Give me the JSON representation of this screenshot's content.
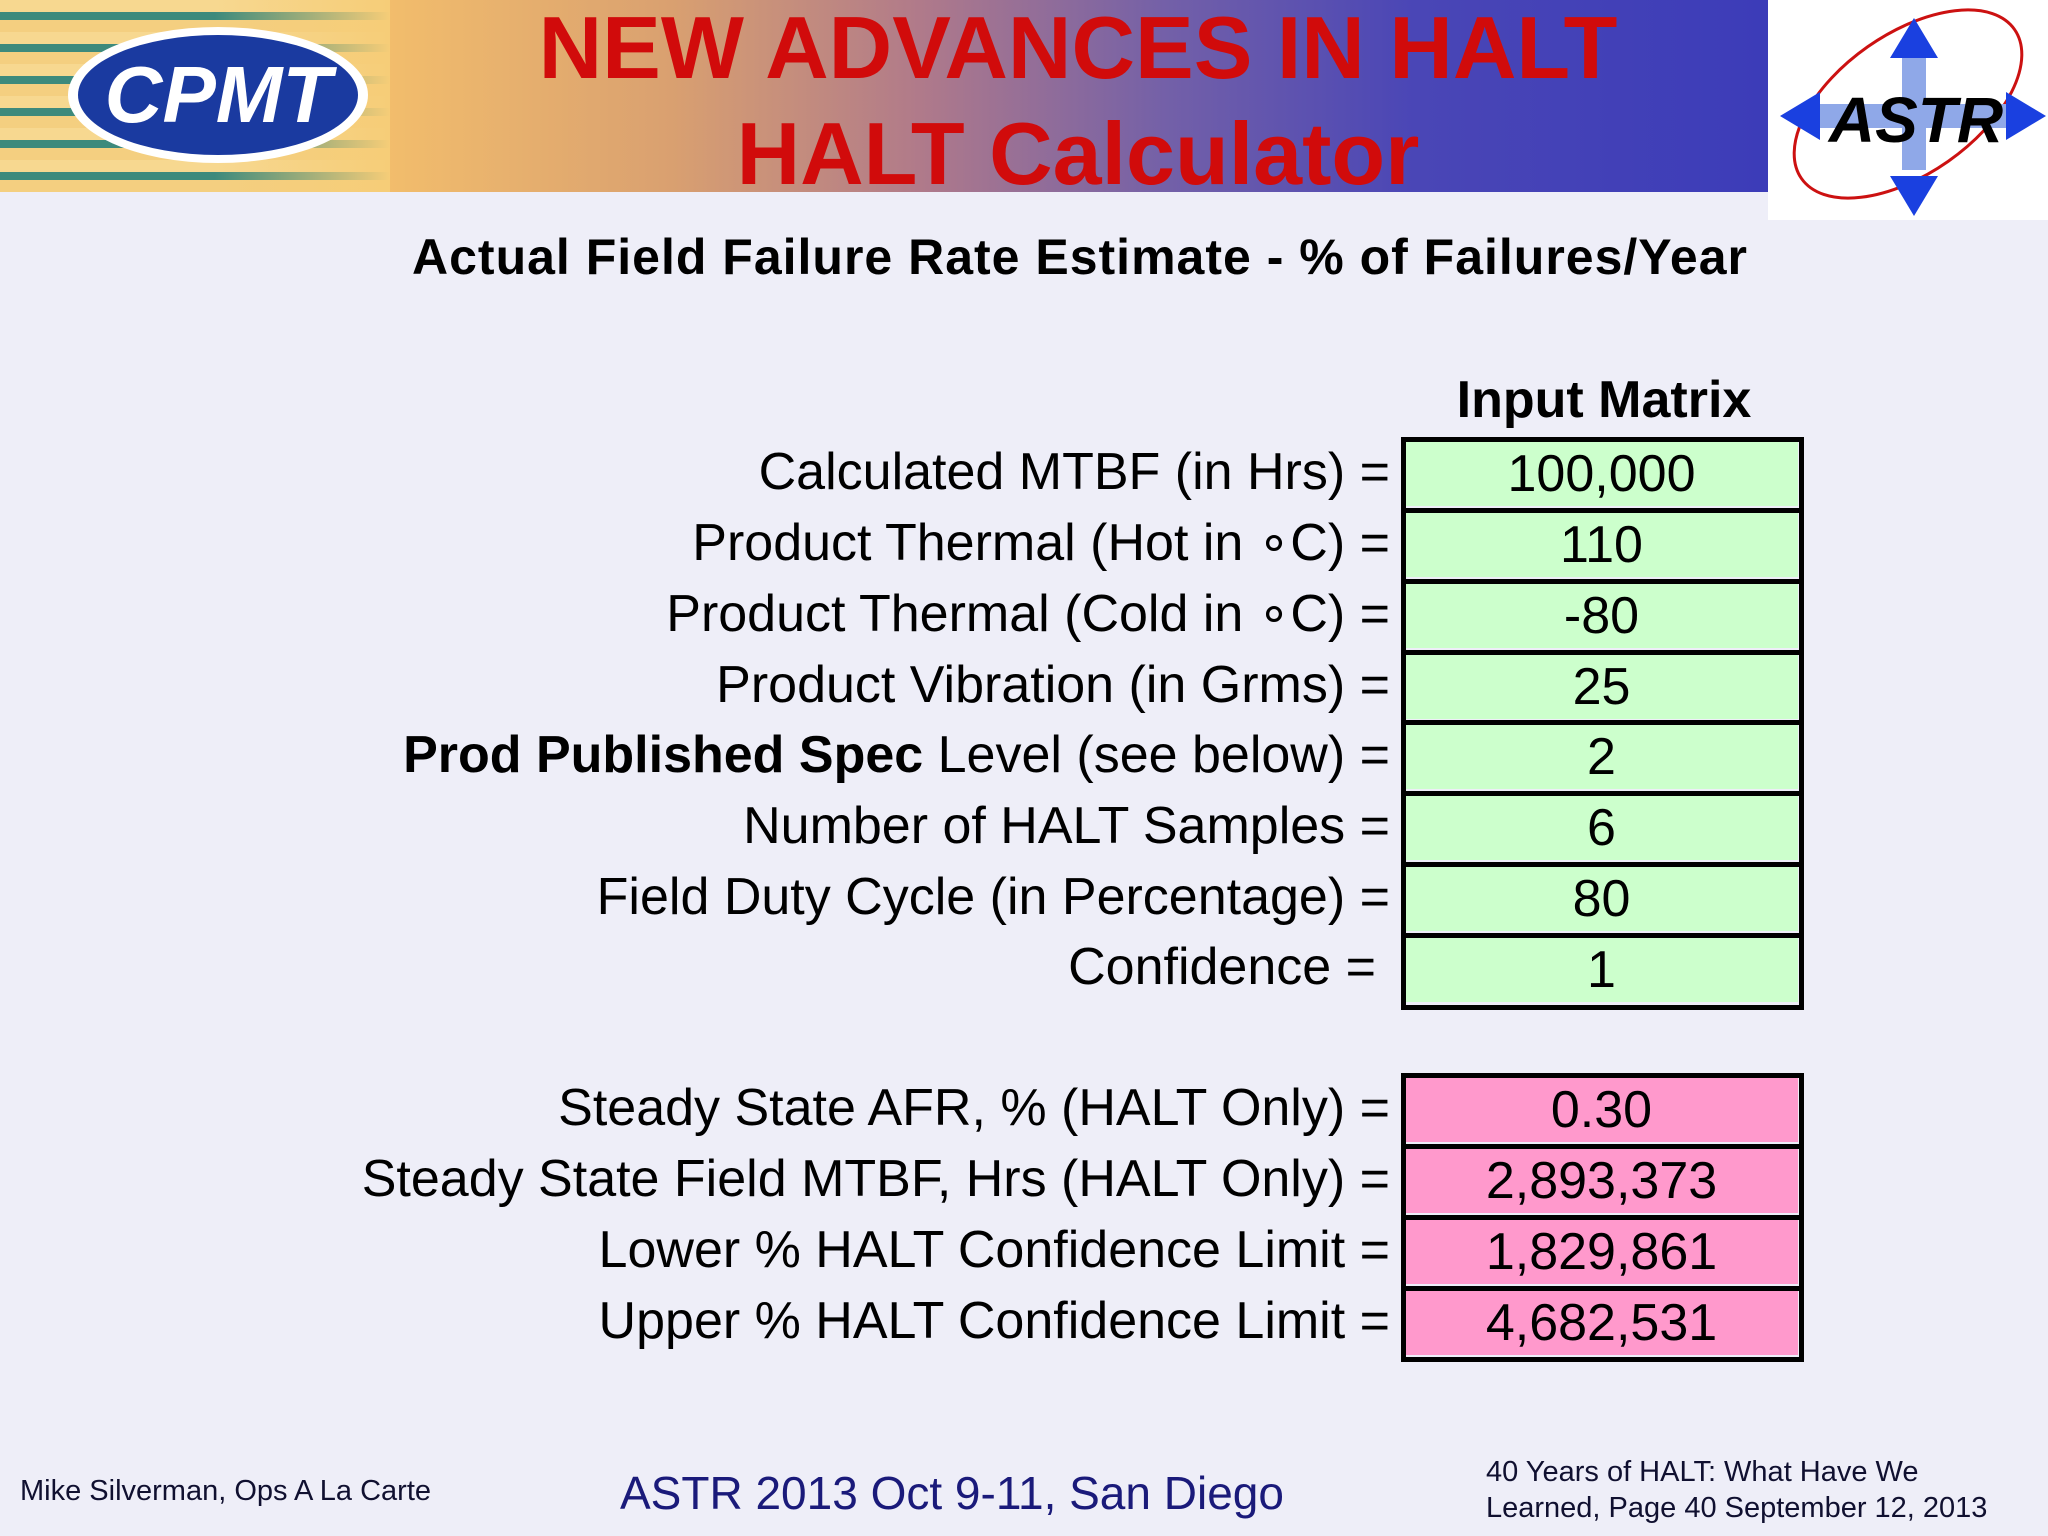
{
  "header": {
    "title_line1": "NEW ADVANCES IN HALT",
    "title_line2": "HALT Calculator",
    "left_logo_text": "CPMT",
    "right_logo_text": "ASTR"
  },
  "subtitle": "Actual Field Failure Rate Estimate - % of Failures/Year",
  "input_matrix": {
    "header": "Input Matrix",
    "rows": [
      {
        "label": "Calculated MTBF (in Hrs) =",
        "value": "100,000"
      },
      {
        "label": "Product Thermal (Hot in ∘C) =",
        "value": "110"
      },
      {
        "label": "Product Thermal (Cold in ∘C) =",
        "value": "-80"
      },
      {
        "label": "Product Vibration (in Grms) =",
        "value": "25"
      },
      {
        "label_bold": "Prod Published Spec",
        "label": " Level (see below) =",
        "value": "2"
      },
      {
        "label": "Number of HALT Samples =",
        "value": "6"
      },
      {
        "label": "Field Duty Cycle (in Percentage) =",
        "value": "80"
      },
      {
        "label": "Confidence =",
        "value": "1"
      }
    ]
  },
  "results": {
    "rows": [
      {
        "label": "Steady State AFR, % (HALT Only) =",
        "value": "0.30"
      },
      {
        "label": "Steady State Field MTBF, Hrs (HALT Only) =",
        "value": "2,893,373"
      },
      {
        "label": "Lower % HALT Confidence Limit =",
        "value": "1,829,861"
      },
      {
        "label": "Upper % HALT Confidence Limit =",
        "value": "4,682,531"
      }
    ]
  },
  "footer": {
    "left": "Mike Silverman, Ops A La Carte",
    "center": "ASTR 2013 Oct 9-11, San Diego",
    "right_line1": "40 Years of HALT: What Have We",
    "right_line2": "Learned, Page 40  September 12, 2013"
  },
  "colors": {
    "title": "#d10b0b",
    "input_cell": "#ccffcc",
    "output_cell": "#ff99cc",
    "logo_blue": "#1a3aa0"
  }
}
